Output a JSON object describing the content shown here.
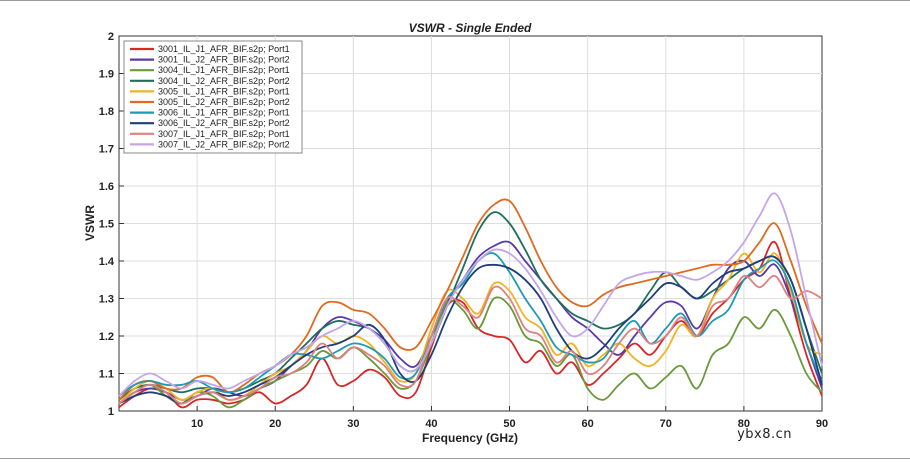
{
  "watermark": "ybx8.cn",
  "chart_data": {
    "type": "line",
    "title": "VSWR - Single Ended",
    "xlabel": "Frequency (GHz)",
    "ylabel": "VSWR",
    "xlim": [
      0,
      90
    ],
    "ylim": [
      1,
      2
    ],
    "xticks": [
      10,
      20,
      30,
      40,
      50,
      60,
      70,
      80,
      90
    ],
    "yticks": [
      1,
      1.1,
      1.2,
      1.3,
      1.4,
      1.5,
      1.6,
      1.7,
      1.8,
      1.9,
      2
    ],
    "grid": true,
    "legend_position": "top-left",
    "x": [
      0,
      2,
      4,
      6,
      8,
      10,
      12,
      14,
      16,
      18,
      20,
      22,
      24,
      26,
      28,
      30,
      32,
      34,
      36,
      38,
      40,
      42,
      44,
      46,
      48,
      50,
      52,
      54,
      56,
      58,
      60,
      62,
      64,
      66,
      68,
      70,
      72,
      74,
      76,
      78,
      80,
      82,
      84,
      86,
      88,
      90
    ],
    "series": [
      {
        "name": "3001_IL_J1_AFR_BIF.s2p; Port1",
        "color": "#d62728",
        "values": [
          1.01,
          1.04,
          1.06,
          1.05,
          1.01,
          1.03,
          1.03,
          1.02,
          1.03,
          1.05,
          1.02,
          1.04,
          1.07,
          1.14,
          1.07,
          1.08,
          1.11,
          1.09,
          1.04,
          1.05,
          1.17,
          1.28,
          1.29,
          1.22,
          1.2,
          1.19,
          1.13,
          1.16,
          1.1,
          1.13,
          1.07,
          1.1,
          1.14,
          1.18,
          1.15,
          1.2,
          1.24,
          1.2,
          1.26,
          1.3,
          1.35,
          1.38,
          1.45,
          1.3,
          1.15,
          1.04
        ]
      },
      {
        "name": "3001_IL_J2_AFR_BIF.s2p; Port2",
        "color": "#5a3aa6",
        "values": [
          1.02,
          1.05,
          1.06,
          1.05,
          1.03,
          1.04,
          1.06,
          1.05,
          1.04,
          1.06,
          1.08,
          1.12,
          1.16,
          1.22,
          1.25,
          1.24,
          1.22,
          1.19,
          1.14,
          1.12,
          1.2,
          1.29,
          1.35,
          1.41,
          1.44,
          1.45,
          1.4,
          1.35,
          1.3,
          1.25,
          1.22,
          1.18,
          1.15,
          1.2,
          1.25,
          1.29,
          1.28,
          1.22,
          1.3,
          1.38,
          1.4,
          1.36,
          1.39,
          1.3,
          1.18,
          1.06
        ]
      },
      {
        "name": "3004_IL_J1_AFR_BIF.s2p; Port1",
        "color": "#6a9a3a",
        "values": [
          1.02,
          1.05,
          1.07,
          1.04,
          1.02,
          1.05,
          1.04,
          1.01,
          1.03,
          1.06,
          1.08,
          1.1,
          1.12,
          1.16,
          1.14,
          1.17,
          1.14,
          1.1,
          1.06,
          1.08,
          1.18,
          1.29,
          1.27,
          1.22,
          1.3,
          1.28,
          1.2,
          1.18,
          1.12,
          1.15,
          1.06,
          1.03,
          1.07,
          1.1,
          1.06,
          1.09,
          1.12,
          1.06,
          1.15,
          1.18,
          1.25,
          1.22,
          1.27,
          1.2,
          1.1,
          1.05
        ]
      },
      {
        "name": "3004_IL_J2_AFR_BIF.s2p; Port2",
        "color": "#1f6f5a",
        "values": [
          1.03,
          1.06,
          1.07,
          1.06,
          1.05,
          1.06,
          1.06,
          1.05,
          1.06,
          1.08,
          1.1,
          1.14,
          1.18,
          1.22,
          1.24,
          1.23,
          1.22,
          1.18,
          1.12,
          1.11,
          1.18,
          1.28,
          1.38,
          1.48,
          1.53,
          1.5,
          1.43,
          1.35,
          1.3,
          1.26,
          1.24,
          1.22,
          1.23,
          1.26,
          1.32,
          1.37,
          1.33,
          1.3,
          1.32,
          1.35,
          1.38,
          1.4,
          1.41,
          1.35,
          1.22,
          1.1
        ]
      },
      {
        "name": "3005_IL_J1_AFR_BIF.s2p; Port1",
        "color": "#f0b323",
        "values": [
          1.02,
          1.06,
          1.08,
          1.06,
          1.03,
          1.05,
          1.06,
          1.03,
          1.04,
          1.07,
          1.1,
          1.12,
          1.16,
          1.2,
          1.18,
          1.2,
          1.18,
          1.13,
          1.08,
          1.1,
          1.22,
          1.32,
          1.3,
          1.26,
          1.34,
          1.32,
          1.25,
          1.22,
          1.15,
          1.18,
          1.12,
          1.15,
          1.18,
          1.14,
          1.12,
          1.16,
          1.23,
          1.2,
          1.3,
          1.35,
          1.42,
          1.37,
          1.42,
          1.32,
          1.18,
          1.15
        ]
      },
      {
        "name": "3005_IL_J2_AFR_BIF.s2p; Port2",
        "color": "#e06a20",
        "values": [
          1.03,
          1.07,
          1.08,
          1.06,
          1.06,
          1.09,
          1.09,
          1.05,
          1.07,
          1.1,
          1.12,
          1.15,
          1.2,
          1.28,
          1.29,
          1.27,
          1.26,
          1.22,
          1.17,
          1.17,
          1.24,
          1.32,
          1.41,
          1.5,
          1.55,
          1.56,
          1.49,
          1.4,
          1.33,
          1.29,
          1.28,
          1.31,
          1.33,
          1.34,
          1.35,
          1.36,
          1.37,
          1.38,
          1.39,
          1.39,
          1.4,
          1.45,
          1.5,
          1.4,
          1.28,
          1.18
        ]
      },
      {
        "name": "3006_IL_J1_AFR_BIF.s2p; Port1",
        "color": "#1f9ab5",
        "values": [
          1.04,
          1.07,
          1.08,
          1.07,
          1.07,
          1.08,
          1.06,
          1.05,
          1.06,
          1.09,
          1.12,
          1.15,
          1.15,
          1.14,
          1.16,
          1.18,
          1.17,
          1.14,
          1.09,
          1.1,
          1.2,
          1.3,
          1.34,
          1.4,
          1.42,
          1.37,
          1.3,
          1.24,
          1.17,
          1.15,
          1.13,
          1.14,
          1.2,
          1.24,
          1.18,
          1.22,
          1.26,
          1.2,
          1.24,
          1.27,
          1.35,
          1.38,
          1.4,
          1.33,
          1.18,
          1.08
        ]
      },
      {
        "name": "3006_IL_J2_AFR_BIF.s2p; Port2",
        "color": "#1f3f7a",
        "values": [
          1.02,
          1.04,
          1.05,
          1.04,
          1.02,
          1.04,
          1.05,
          1.04,
          1.05,
          1.07,
          1.09,
          1.12,
          1.15,
          1.17,
          1.18,
          1.2,
          1.23,
          1.19,
          1.1,
          1.08,
          1.15,
          1.25,
          1.33,
          1.38,
          1.39,
          1.38,
          1.35,
          1.3,
          1.22,
          1.16,
          1.14,
          1.17,
          1.22,
          1.26,
          1.3,
          1.34,
          1.33,
          1.3,
          1.34,
          1.37,
          1.38,
          1.4,
          1.41,
          1.35,
          1.22,
          1.07
        ]
      },
      {
        "name": "3007_IL_J1_AFR_BIF.s2p; Port1",
        "color": "#e08080",
        "values": [
          1.02,
          1.05,
          1.07,
          1.05,
          1.02,
          1.04,
          1.05,
          1.03,
          1.04,
          1.06,
          1.09,
          1.1,
          1.13,
          1.18,
          1.14,
          1.17,
          1.15,
          1.12,
          1.07,
          1.08,
          1.2,
          1.3,
          1.28,
          1.25,
          1.33,
          1.3,
          1.22,
          1.2,
          1.13,
          1.16,
          1.1,
          1.12,
          1.18,
          1.22,
          1.18,
          1.2,
          1.25,
          1.2,
          1.28,
          1.3,
          1.36,
          1.33,
          1.36,
          1.3,
          1.32,
          1.3
        ]
      },
      {
        "name": "3007_IL_J2_AFR_BIF.s2p; Port2",
        "color": "#c4a6e8",
        "values": [
          1.04,
          1.08,
          1.1,
          1.08,
          1.06,
          1.08,
          1.07,
          1.06,
          1.08,
          1.1,
          1.12,
          1.15,
          1.17,
          1.2,
          1.22,
          1.24,
          1.22,
          1.18,
          1.12,
          1.11,
          1.18,
          1.28,
          1.35,
          1.4,
          1.43,
          1.42,
          1.38,
          1.32,
          1.25,
          1.2,
          1.22,
          1.28,
          1.34,
          1.36,
          1.37,
          1.37,
          1.36,
          1.35,
          1.37,
          1.4,
          1.45,
          1.52,
          1.58,
          1.48,
          1.3,
          1.12
        ]
      }
    ]
  }
}
